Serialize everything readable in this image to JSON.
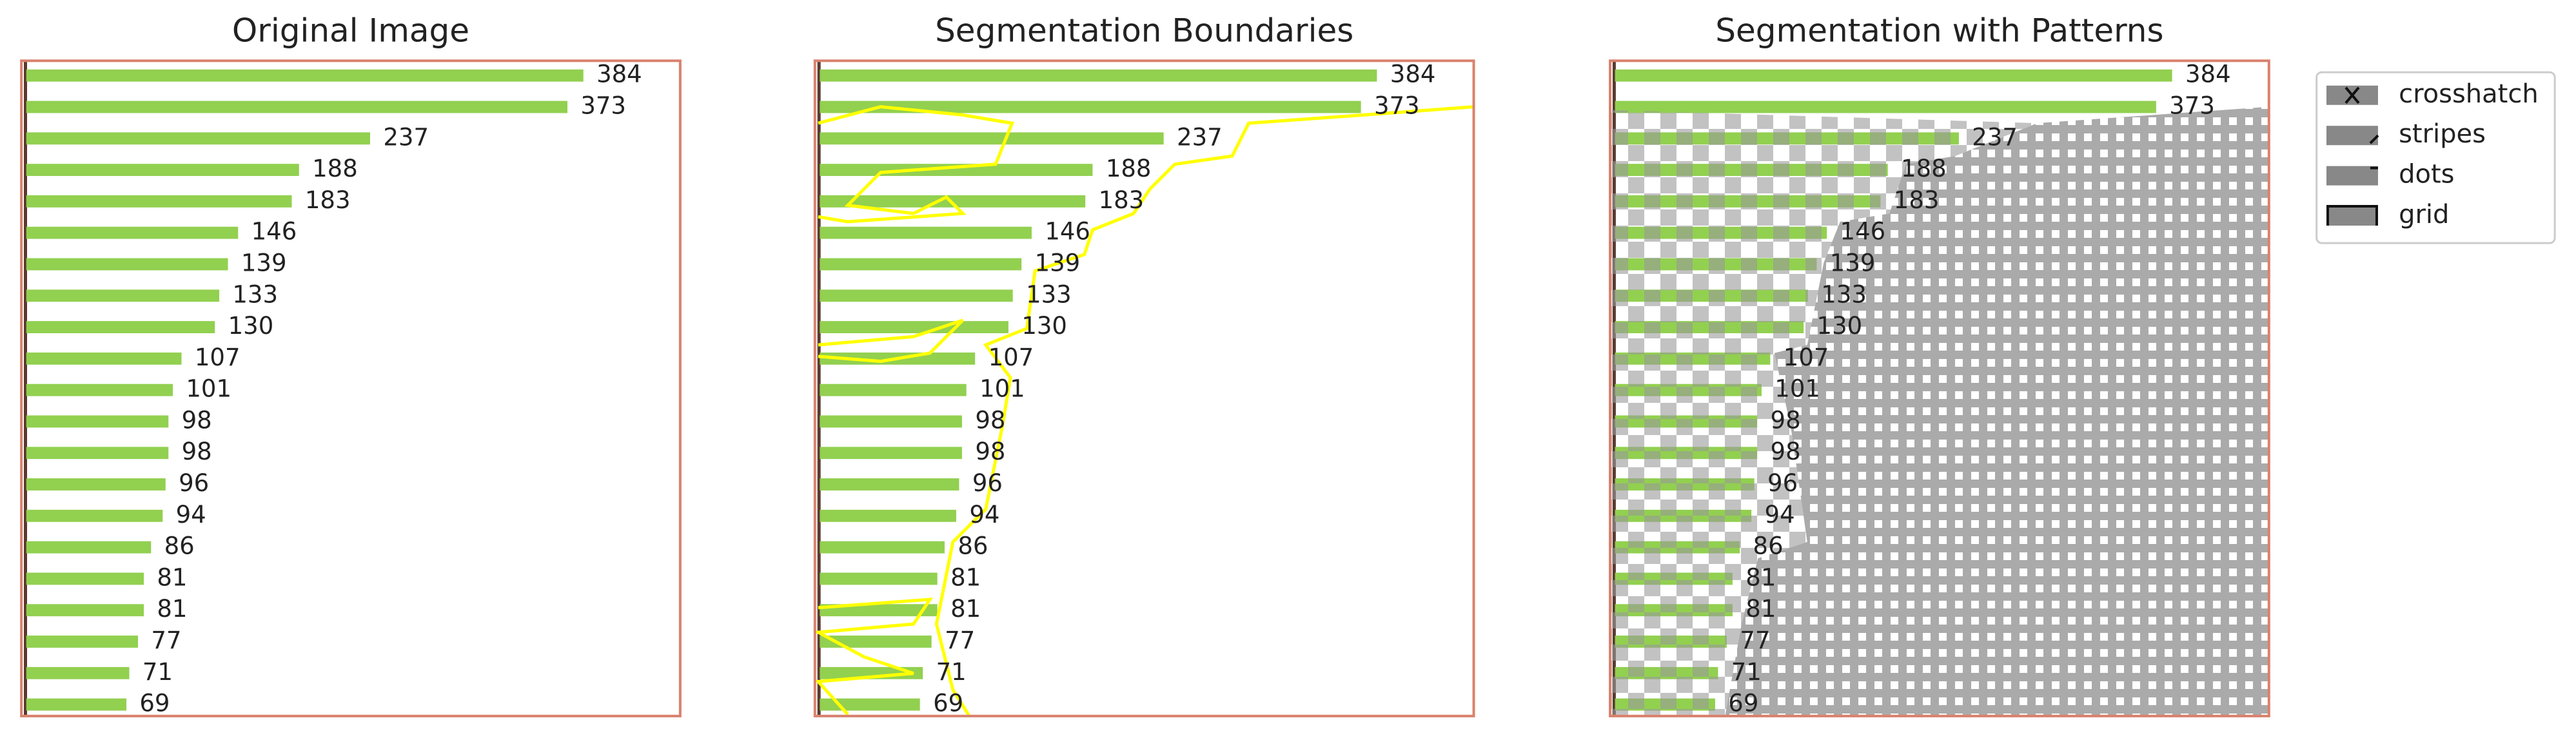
{
  "panels": [
    {
      "title": "Original Image"
    },
    {
      "title": "Segmentation Boundaries"
    },
    {
      "title": "Segmentation with Patterns"
    }
  ],
  "bars": {
    "values": [
      384,
      373,
      237,
      188,
      183,
      146,
      139,
      133,
      130,
      107,
      101,
      98,
      98,
      96,
      94,
      86,
      81,
      81,
      77,
      71,
      69
    ]
  },
  "legend": {
    "entries": [
      "crosshatch",
      "stripes",
      "dots",
      "grid"
    ]
  }
}
